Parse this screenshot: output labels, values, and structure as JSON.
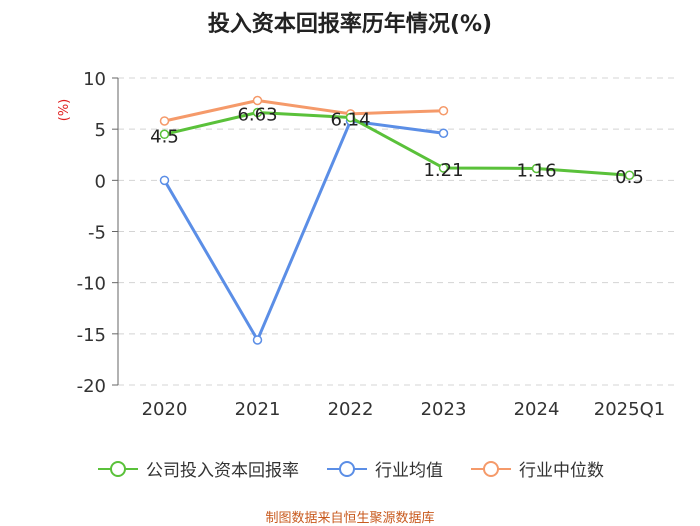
{
  "chart_data": {
    "type": "line",
    "title": "投入资本回报率历年情况(%)",
    "ylabel": "(%)",
    "xlabel": "",
    "categories": [
      "2020",
      "2021",
      "2022",
      "2023",
      "2024",
      "2025Q1"
    ],
    "ylim": [
      -20,
      10
    ],
    "yticks": [
      10,
      5,
      0,
      -5,
      -10,
      -15,
      -20
    ],
    "grid": "horizontal-dashed",
    "legend_position": "bottom",
    "series": [
      {
        "name": "公司投入资本回报率",
        "color": "#5ac13a",
        "values": [
          4.5,
          6.63,
          6.14,
          1.21,
          1.16,
          0.5
        ],
        "labels": [
          "4.5",
          "6.63",
          "6.14",
          "1.21",
          "1.16",
          "0.5"
        ]
      },
      {
        "name": "行业均值",
        "color": "#5b8ee6",
        "values": [
          0.0,
          -15.6,
          5.8,
          4.6,
          null,
          null
        ]
      },
      {
        "name": "行业中位数",
        "color": "#f59a6a",
        "values": [
          5.8,
          7.8,
          6.5,
          6.8,
          null,
          null
        ]
      }
    ]
  },
  "source_note": "制图数据来自恒生聚源数据库"
}
